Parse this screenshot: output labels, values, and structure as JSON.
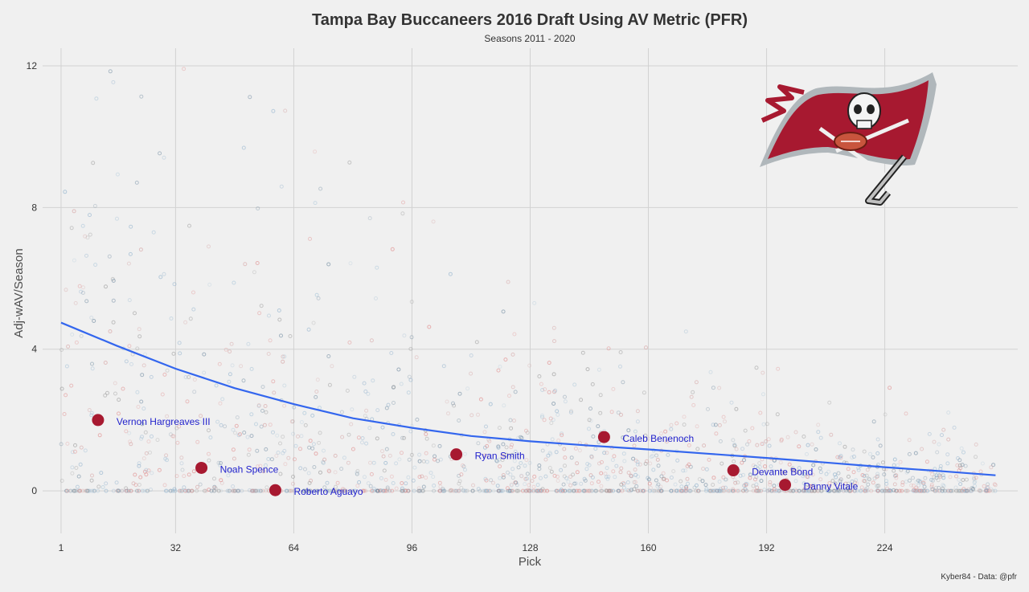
{
  "chart_data": {
    "type": "scatter",
    "title": "Tampa Bay Buccaneers 2016 Draft Using AV Metric (PFR)",
    "subtitle": "Seasons 2011 - 2020",
    "xlabel": "Pick",
    "ylabel": "Adj-wAV/Season",
    "caption": "Kyber84 - Data: @pfr",
    "xlim": [
      -4,
      260
    ],
    "ylim": [
      -1.2,
      12.5
    ],
    "x_ticks": [
      1,
      32,
      64,
      96,
      128,
      160,
      192,
      224
    ],
    "y_ticks": [
      0,
      4,
      8,
      12
    ],
    "grid": true,
    "legend": "none",
    "highlight_color": "#a71930",
    "label_color": "#2222cc",
    "trend_color": "#3366ee",
    "highlighted_picks": [
      {
        "name": "Vernon Hargreaves III",
        "pick": 11,
        "value": 2.0
      },
      {
        "name": "Noah Spence",
        "pick": 39,
        "value": 0.65
      },
      {
        "name": "Roberto Aguayo",
        "pick": 59,
        "value": 0.02
      },
      {
        "name": "Ryan Smith",
        "pick": 108,
        "value": 1.03
      },
      {
        "name": "Caleb Benenoch",
        "pick": 148,
        "value": 1.52
      },
      {
        "name": "Devante Bond",
        "pick": 183,
        "value": 0.58
      },
      {
        "name": "Danny Vitale",
        "pick": 197,
        "value": 0.17
      }
    ],
    "trend_line": {
      "x": [
        1,
        16,
        32,
        48,
        64,
        80,
        96,
        112,
        128,
        144,
        160,
        176,
        192,
        208,
        224,
        240,
        254
      ],
      "y": [
        4.75,
        4.1,
        3.45,
        2.9,
        2.45,
        2.05,
        1.78,
        1.55,
        1.4,
        1.28,
        1.17,
        1.05,
        0.93,
        0.8,
        0.67,
        0.55,
        0.44
      ]
    },
    "logo": "buccaneers-flag-logo"
  }
}
